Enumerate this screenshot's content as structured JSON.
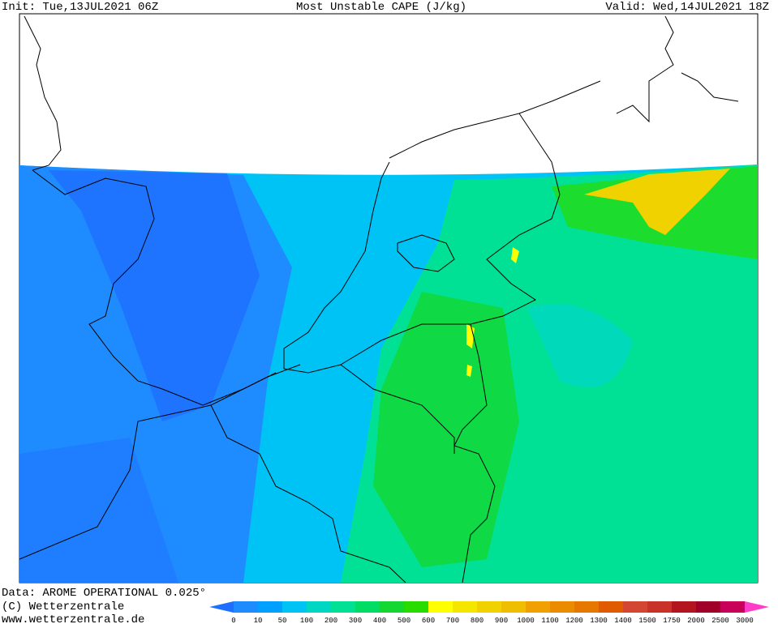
{
  "header": {
    "init": "Init: Tue,13JUL2021 06Z",
    "title": "Most Unstable CAPE (J/kg)",
    "valid": "Valid: Wed,14JUL2021 18Z"
  },
  "footer": {
    "data": "Data: AROME OPERATIONAL 0.025°",
    "copyright": "(C) Wetterzentrale",
    "url": "www.wetterzentrale.de"
  },
  "colorbar": {
    "levels": [
      0,
      10,
      50,
      100,
      200,
      300,
      400,
      500,
      600,
      700,
      800,
      900,
      1000,
      1100,
      1200,
      1300,
      1400,
      1500,
      1750,
      2000,
      2500,
      3000
    ],
    "below_color": "#1e6eff",
    "colors": [
      "#1e8cff",
      "#00a0ff",
      "#00c3f5",
      "#00d7c3",
      "#00e196",
      "#00dc64",
      "#14d732",
      "#28dc00",
      "#ffff00",
      "#f5e600",
      "#f0d200",
      "#f0be00",
      "#f0a000",
      "#eb8c00",
      "#e67800",
      "#e05a00",
      "#d24632",
      "#c83228",
      "#b4141e",
      "#a00028",
      "#c8005a"
    ],
    "above_color": "#ff3cc8"
  }
}
